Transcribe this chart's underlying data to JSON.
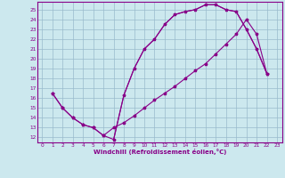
{
  "xlabel": "Windchill (Refroidissement éolien,°C)",
  "bg_color": "#cce8ee",
  "line_color": "#880088",
  "grid_color": "#99bbcc",
  "xlim": [
    -0.5,
    23.5
  ],
  "ylim": [
    11.5,
    25.8
  ],
  "xticks": [
    0,
    1,
    2,
    3,
    4,
    5,
    6,
    7,
    8,
    9,
    10,
    11,
    12,
    13,
    14,
    15,
    16,
    17,
    18,
    19,
    20,
    21,
    22,
    23
  ],
  "yticks": [
    12,
    13,
    14,
    15,
    16,
    17,
    18,
    19,
    20,
    21,
    22,
    23,
    24,
    25
  ],
  "line1_x": [
    1,
    2,
    3,
    4,
    5,
    6,
    7,
    8,
    9,
    10,
    11,
    12,
    13,
    14,
    15,
    16,
    17,
    18,
    19,
    20,
    21,
    22
  ],
  "line1_y": [
    16.5,
    15.0,
    14.0,
    13.3,
    13.0,
    12.2,
    11.8,
    16.3,
    19.0,
    21.0,
    22.0,
    23.5,
    24.5,
    24.8,
    25.0,
    25.5,
    25.5,
    25.0,
    24.8,
    23.0,
    21.0,
    18.5
  ],
  "line2_x": [
    1,
    2,
    3,
    4,
    5,
    6,
    7,
    8,
    9,
    10,
    11,
    12,
    13,
    14,
    15,
    16,
    17,
    18,
    19,
    20,
    21,
    22
  ],
  "line2_y": [
    16.5,
    15.0,
    14.0,
    13.3,
    13.0,
    12.2,
    13.0,
    13.5,
    14.2,
    15.0,
    15.8,
    16.5,
    17.2,
    18.0,
    18.8,
    19.5,
    20.5,
    21.5,
    22.5,
    24.0,
    22.5,
    18.5
  ],
  "line3_x": [
    7,
    8,
    9,
    10,
    11,
    12,
    13,
    14,
    15,
    16,
    17,
    18,
    19,
    20,
    21,
    22
  ],
  "line3_y": [
    11.8,
    16.3,
    19.0,
    21.0,
    22.0,
    23.5,
    24.5,
    24.8,
    25.0,
    25.5,
    25.5,
    25.0,
    24.8,
    23.0,
    21.0,
    18.5
  ]
}
